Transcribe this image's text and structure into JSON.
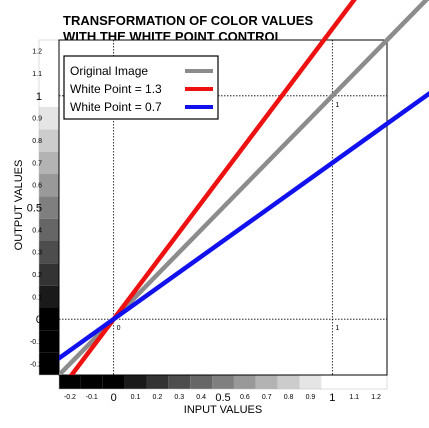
{
  "chart_data": {
    "type": "line",
    "title": [
      "TRANSFORMATION OF COLOR VALUES",
      "WITH THE WHITE POINT CONTROL"
    ],
    "xlabel": "INPUT VALUES",
    "ylabel": "OUTPUT VALUES",
    "xlim": [
      -0.25,
      1.25
    ],
    "ylim": [
      -0.25,
      1.25
    ],
    "x_ticks": [
      {
        "value": -0.2,
        "label": "-0.2",
        "big": false
      },
      {
        "value": -0.1,
        "label": "-0.1",
        "big": false
      },
      {
        "value": 0,
        "label": "0",
        "big": true
      },
      {
        "value": 0.1,
        "label": "0.1",
        "big": false
      },
      {
        "value": 0.2,
        "label": "0.2",
        "big": false
      },
      {
        "value": 0.3,
        "label": "0.3",
        "big": false
      },
      {
        "value": 0.4,
        "label": "0.4",
        "big": false
      },
      {
        "value": 0.5,
        "label": "0.5",
        "big": true
      },
      {
        "value": 0.6,
        "label": "0.6",
        "big": false
      },
      {
        "value": 0.7,
        "label": "0.7",
        "big": false
      },
      {
        "value": 0.8,
        "label": "0.8",
        "big": false
      },
      {
        "value": 0.9,
        "label": "0.9",
        "big": false
      },
      {
        "value": 1,
        "label": "1",
        "big": true
      },
      {
        "value": 1.1,
        "label": "1.1",
        "big": false
      },
      {
        "value": 1.2,
        "label": "1.2",
        "big": false
      }
    ],
    "y_ticks": [
      {
        "value": -0.2,
        "label": "-0.2",
        "big": false
      },
      {
        "value": -0.1,
        "label": "-0.1",
        "big": false
      },
      {
        "value": 0,
        "label": "0",
        "big": true
      },
      {
        "value": 0.1,
        "label": "0.1",
        "big": false
      },
      {
        "value": 0.2,
        "label": "0.2",
        "big": false
      },
      {
        "value": 0.3,
        "label": "0.3",
        "big": false
      },
      {
        "value": 0.4,
        "label": "0.4",
        "big": false
      },
      {
        "value": 0.5,
        "label": "0.5",
        "big": true
      },
      {
        "value": 0.6,
        "label": "0.6",
        "big": false
      },
      {
        "value": 0.7,
        "label": "0.7",
        "big": false
      },
      {
        "value": 0.8,
        "label": "0.8",
        "big": false
      },
      {
        "value": 0.9,
        "label": "0.9",
        "big": false
      },
      {
        "value": 1,
        "label": "1",
        "big": true
      },
      {
        "value": 1.1,
        "label": "1.1",
        "big": false
      },
      {
        "value": 1.2,
        "label": "1.2",
        "big": false
      }
    ],
    "reference_lines": {
      "x": [
        0,
        1
      ],
      "y": [
        0,
        1
      ],
      "style": "dotted"
    },
    "point_labels": [
      {
        "x": 0,
        "y": 0,
        "text": "0"
      },
      {
        "x": 1,
        "y": 0,
        "text": "1"
      },
      {
        "x": 1,
        "y": 1,
        "text": "1"
      }
    ],
    "series": [
      {
        "name": "Original Image",
        "color": "#8c8c8c",
        "slope": 1.0,
        "points": [
          [
            -0.25,
            -0.25
          ],
          [
            1.25,
            1.25
          ]
        ]
      },
      {
        "name": "White Point = 1.3",
        "color": "#ee1111",
        "slope": 1.3,
        "points": [
          [
            -0.1923,
            -0.25
          ],
          [
            0.9615,
            1.25
          ]
        ]
      },
      {
        "name": "White Point = 0.7",
        "color": "#1111ee",
        "slope": 0.7,
        "points": [
          [
            -0.25,
            -0.175
          ],
          [
            1.25,
            0.875
          ]
        ]
      }
    ],
    "legend_position": "top-left",
    "grayscale_ramp": {
      "range": [
        -0.25,
        1.25
      ],
      "step": 0.1,
      "clamp": [
        0,
        1
      ],
      "from_color": "#000000",
      "to_color": "#ffffff"
    },
    "grid": false
  }
}
